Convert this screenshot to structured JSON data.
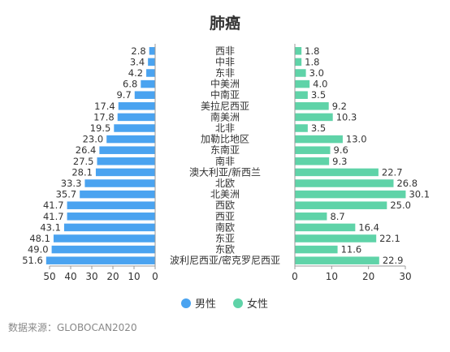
{
  "chart_data": {
    "type": "bar",
    "orientation": "horizontal",
    "layout": "butterfly",
    "title": "肺癌",
    "categories": [
      "西非",
      "中非",
      "东非",
      "中美洲",
      "中南亚",
      "美拉尼西亚",
      "南美洲",
      "北非",
      "加勒比地区",
      "东南亚",
      "南非",
      "澳大利亚/新西兰",
      "北欧",
      "北美洲",
      "西欧",
      "西亚",
      "南欧",
      "东亚",
      "东欧",
      "波利尼西亚/密克罗尼西亚"
    ],
    "series": [
      {
        "name": "男性",
        "color": "#4aa3f0",
        "values": [
          2.8,
          3.4,
          4.2,
          6.8,
          9.7,
          17.4,
          17.8,
          19.5,
          23.0,
          26.4,
          27.5,
          28.1,
          33.3,
          35.7,
          41.7,
          41.7,
          43.1,
          48.1,
          49.0,
          51.6
        ],
        "value_labels": [
          "2.8",
          "3.4",
          "4.2",
          "6.8",
          "9.7",
          "17.4",
          "17.8",
          "19.5",
          "23.0",
          "26.4",
          "27.5",
          "28.1",
          "33.3",
          "35.7",
          "41.7",
          "41.7",
          "43.1",
          "48.1",
          "49.0",
          "51.6"
        ]
      },
      {
        "name": "女性",
        "color": "#5fd3a8",
        "values": [
          1.8,
          1.8,
          3.0,
          4.0,
          3.5,
          9.2,
          10.3,
          3.5,
          13.0,
          9.6,
          9.3,
          22.7,
          26.8,
          30.1,
          25.0,
          8.7,
          16.4,
          22.1,
          11.6,
          22.9
        ],
        "value_labels": [
          "1.8",
          "1.8",
          "3.0",
          "4.0",
          "3.5",
          "9.2",
          "10.3",
          "3.5",
          "13.0",
          "9.6",
          "9.3",
          "22.7",
          "26.8",
          "30.1",
          "25.0",
          "8.7",
          "16.4",
          "22.1",
          "11.6",
          "22.9"
        ]
      }
    ],
    "left_axis": {
      "ticks": [
        "50",
        "40",
        "30",
        "20",
        "10",
        "0"
      ],
      "tick_values": [
        50,
        40,
        30,
        20,
        10,
        0
      ],
      "xlim": [
        0,
        50
      ]
    },
    "right_axis": {
      "ticks": [
        "0",
        "10",
        "20",
        "30"
      ],
      "tick_values": [
        0,
        10,
        20,
        30
      ],
      "xlim": [
        0,
        30
      ]
    },
    "legend": {
      "position": "bottom",
      "entries": [
        "男性",
        "女性"
      ]
    },
    "grid": false
  },
  "source_note": "数据来源：GLOBOCAN2020"
}
